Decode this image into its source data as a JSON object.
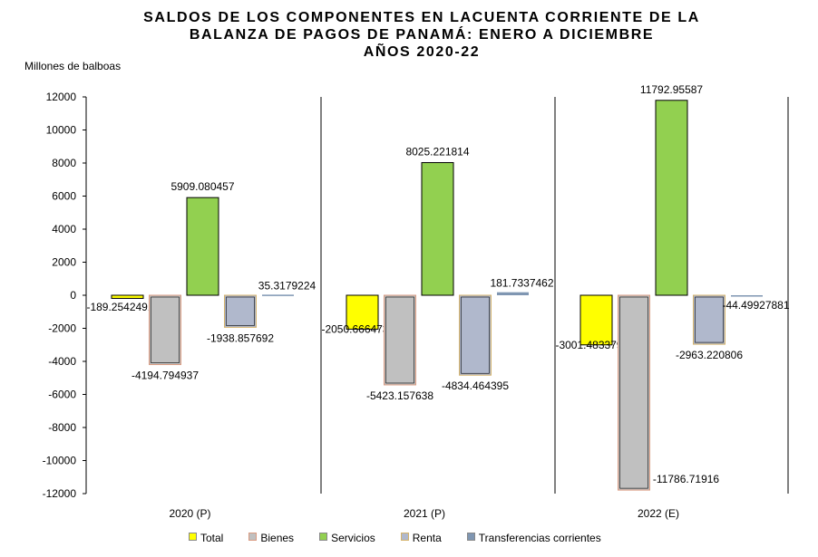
{
  "chart_data": {
    "type": "bar",
    "title_lines": [
      "SALDOS DE LOS COMPONENTES EN LACUENTA CORRIENTE DE LA",
      "BALANZA DE PAGOS DE PANAMÁ: ENERO A DICIEMBRE",
      "AÑOS 2020-22"
    ],
    "ylabel": "Millones de balboas",
    "xlabel": "",
    "ylim": [
      -12000,
      12000
    ],
    "yticks": [
      12000,
      10000,
      8000,
      6000,
      4000,
      2000,
      0,
      -2000,
      -4000,
      -6000,
      -8000,
      -10000,
      -12000
    ],
    "categories": [
      "2020 (P)",
      "2021 (P)",
      "2022 (E)"
    ],
    "series": [
      {
        "name": "Total",
        "color": "#ffff00",
        "values": [
          -189.2542491,
          -2050.666473,
          -3001.483379
        ],
        "labels": [
          "-189.2542491",
          "-2050.666473",
          "-3001.483379"
        ]
      },
      {
        "name": "Bienes",
        "color": "#c0c0c0",
        "border": "#d99a80",
        "values": [
          -4194.794937,
          -5423.157638,
          -11786.71916
        ],
        "labels": [
          "-4194.794937",
          "-5423.157638",
          "-11786.71916"
        ]
      },
      {
        "name": "Servicios",
        "color": "#92d050",
        "values": [
          5909.080457,
          8025.221814,
          11792.95587
        ],
        "labels": [
          "5909.080457",
          "8025.221814",
          "11792.95587"
        ]
      },
      {
        "name": "Renta",
        "color": "#b0b8cc",
        "border": "#d4b26a",
        "values": [
          -1938.857692,
          -4834.464395,
          -2963.220806
        ],
        "labels": [
          "-1938.857692",
          "-4834.464395",
          "-2963.220806"
        ]
      },
      {
        "name": "Transferencias corrientes",
        "color": "#7f96b2",
        "values": [
          35.3179224,
          181.7337462,
          -44.49927881
        ],
        "labels": [
          "35.3179224",
          "181.7337462",
          "-44.49927881"
        ]
      }
    ],
    "legend_position": "bottom",
    "grid": false
  }
}
